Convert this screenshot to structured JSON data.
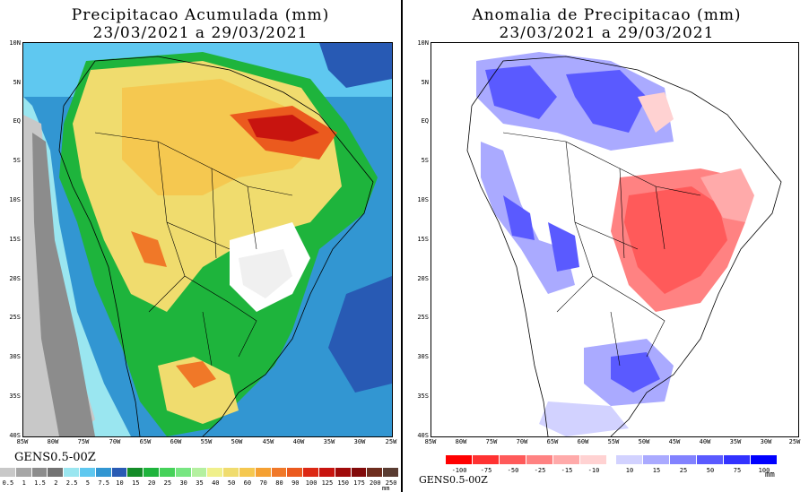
{
  "left": {
    "title": "Precipitacao Acumulada (mm)",
    "date_range": "23/03/2021 a 29/03/2021",
    "model": "GENS0.5-00Z",
    "unit": "mm",
    "colorbar": {
      "labels": [
        "0.5",
        "1",
        "1.5",
        "2",
        "2.5",
        "5",
        "7.5",
        "10",
        "15",
        "20",
        "25",
        "30",
        "35",
        "40",
        "50",
        "60",
        "70",
        "80",
        "90",
        "100",
        "125",
        "150",
        "175",
        "200",
        "250"
      ],
      "colors": [
        "#c8c8c8",
        "#a6a6a6",
        "#8c8c8c",
        "#737373",
        "#9ae6f0",
        "#5fc8f0",
        "#3296d2",
        "#285ab4",
        "#148c28",
        "#1eb43c",
        "#46d25a",
        "#78e682",
        "#b4f0a0",
        "#f0f08c",
        "#f0dc6e",
        "#f5c850",
        "#f5a032",
        "#f07828",
        "#eb5a1e",
        "#dc2814",
        "#c8140f",
        "#a00a0a",
        "#820a0a",
        "#6e2d1e",
        "#5a3c32"
      ]
    }
  },
  "right": {
    "title": "Anomalia de Precipitacao (mm)",
    "date_range": "23/03/2021 a 29/03/2021",
    "model": "GENS0.5-00Z",
    "unit": "mm",
    "colorbar": {
      "neg_labels": [
        "-100",
        "-75",
        "-50",
        "-25",
        "-15",
        "-10"
      ],
      "pos_labels": [
        "10",
        "15",
        "25",
        "50",
        "75",
        "100"
      ],
      "neg_colors": [
        "#ff0000",
        "#ff3232",
        "#ff5a5a",
        "#ff8282",
        "#ffaaaa",
        "#ffd2d2"
      ],
      "pos_colors": [
        "#d2d2ff",
        "#aaaaff",
        "#8282ff",
        "#5a5aff",
        "#3232ff",
        "#0000ff"
      ]
    }
  },
  "axes": {
    "lat_labels": [
      "10N",
      "5N",
      "EQ",
      "5S",
      "10S",
      "15S",
      "20S",
      "25S",
      "30S",
      "35S",
      "40S"
    ],
    "lon_labels": [
      "85W",
      "80W",
      "75W",
      "70W",
      "65W",
      "60W",
      "55W",
      "50W",
      "45W",
      "40W",
      "35W",
      "30W",
      "25W"
    ]
  }
}
